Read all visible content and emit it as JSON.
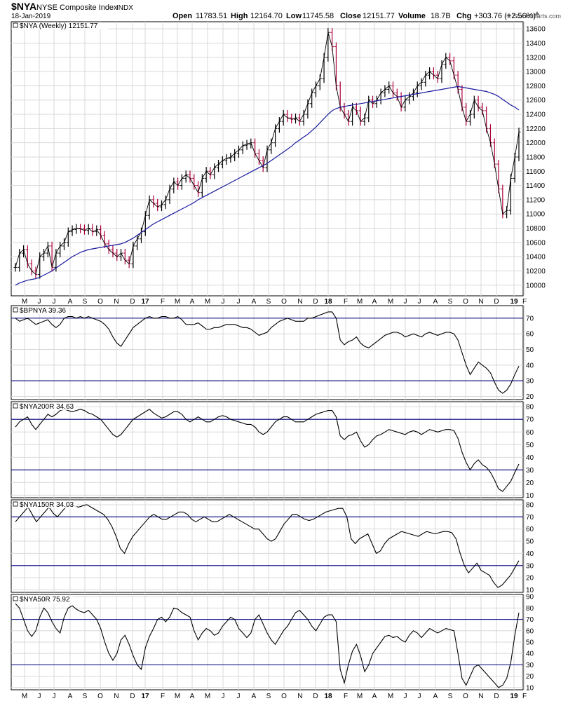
{
  "header": {
    "symbol": "$NYA",
    "name": "NYSE Composite Index",
    "exchange": "INDX",
    "date": "18-Jan-2019",
    "watermark": "© StockCharts.com",
    "quote": {
      "open_label": "Open",
      "open": "11783.51",
      "high_label": "High",
      "high": "12164.70",
      "low_label": "Low",
      "low": "11745.58",
      "close_label": "Close",
      "close": "12151.77",
      "volume_label": "Volume",
      "volume": "18.7B",
      "chg_label": "Chg",
      "chg": "+303.76 (+2.56%)"
    }
  },
  "colors": {
    "price": "#000000",
    "down_bar": "#b00040",
    "moving_average": "#1a1aa0",
    "grid": "#d8d8d8",
    "reference_line": "#000080"
  },
  "chart_data": [
    {
      "type": "line",
      "panel": "price",
      "label": "$NYA (Weekly) 12151.77",
      "x_tick_labels": [
        "M",
        "J",
        "J",
        "A",
        "S",
        "O",
        "N",
        "D",
        "17",
        "F",
        "M",
        "A",
        "M",
        "J",
        "J",
        "A",
        "S",
        "O",
        "N",
        "D",
        "18",
        "F",
        "M",
        "A",
        "M",
        "J",
        "J",
        "A",
        "S",
        "O",
        "N",
        "D",
        "19",
        "F"
      ],
      "y_ticks": [
        10000,
        10200,
        10400,
        10600,
        10800,
        11000,
        11200,
        11400,
        11600,
        11800,
        12000,
        12200,
        12400,
        12600,
        12800,
        13000,
        13200,
        13400,
        13600
      ],
      "ylim": [
        9850,
        13700
      ],
      "grid": true,
      "series": [
        {
          "name": "close",
          "values": [
            10250,
            10450,
            10500,
            10300,
            10200,
            10150,
            10400,
            10450,
            10550,
            10250,
            10450,
            10550,
            10600,
            10750,
            10780,
            10800,
            10790,
            10770,
            10800,
            10750,
            10780,
            10700,
            10580,
            10500,
            10450,
            10400,
            10450,
            10350,
            10300,
            10550,
            10650,
            10750,
            10980,
            11200,
            11150,
            11100,
            11130,
            11200,
            11350,
            11450,
            11400,
            11500,
            11550,
            11500,
            11400,
            11300,
            11500,
            11600,
            11550,
            11650,
            11700,
            11750,
            11780,
            11800,
            11850,
            11900,
            11960,
            11980,
            12000,
            11850,
            11750,
            11650,
            11900,
            12000,
            12200,
            12300,
            12400,
            12350,
            12330,
            12350,
            12300,
            12400,
            12550,
            12700,
            12800,
            12900,
            13200,
            13550,
            13350,
            12800,
            12500,
            12400,
            12300,
            12500,
            12450,
            12300,
            12350,
            12600,
            12550,
            12600,
            12700,
            12750,
            12800,
            12700,
            12650,
            12500,
            12600,
            12650,
            12700,
            12800,
            12850,
            12950,
            13000,
            12950,
            12900,
            13100,
            13200,
            13150,
            12950,
            12750,
            12500,
            12300,
            12400,
            12600,
            12500,
            12450,
            12200,
            12000,
            11700,
            11350,
            11000,
            11050,
            11500,
            11800,
            12151.77
          ]
        },
        {
          "name": "moving_average",
          "values": [
            10000,
            10030,
            10050,
            10070,
            10080,
            10090,
            10110,
            10140,
            10170,
            10200,
            10240,
            10280,
            10320,
            10360,
            10400,
            10430,
            10460,
            10480,
            10500,
            10510,
            10520,
            10530,
            10540,
            10550,
            10560,
            10570,
            10580,
            10600,
            10630,
            10660,
            10700,
            10740,
            10780,
            10820,
            10860,
            10890,
            10920,
            10950,
            10980,
            11010,
            11040,
            11070,
            11100,
            11130,
            11160,
            11200,
            11230,
            11260,
            11290,
            11320,
            11350,
            11380,
            11410,
            11440,
            11470,
            11500,
            11530,
            11560,
            11590,
            11620,
            11650,
            11680,
            11710,
            11750,
            11790,
            11830,
            11870,
            11910,
            11950,
            12000,
            12040,
            12080,
            12120,
            12170,
            12220,
            12280,
            12340,
            12400,
            12450,
            12480,
            12500,
            12510,
            12520,
            12530,
            12540,
            12550,
            12560,
            12570,
            12580,
            12590,
            12600,
            12610,
            12620,
            12630,
            12640,
            12650,
            12660,
            12670,
            12680,
            12690,
            12700,
            12710,
            12720,
            12730,
            12740,
            12750,
            12760,
            12770,
            12780,
            12790,
            12780,
            12770,
            12760,
            12750,
            12740,
            12730,
            12720,
            12700,
            12680,
            12650,
            12610,
            12570,
            12530,
            12500,
            12460
          ]
        }
      ]
    },
    {
      "type": "line",
      "panel": "bpnya",
      "label": "$BPNYA 39.36",
      "y_ticks": [
        20,
        30,
        40,
        50,
        60,
        70
      ],
      "reference_lines": [
        70,
        30
      ],
      "ylim": [
        18,
        78
      ],
      "grid": true,
      "series": [
        {
          "name": "$BPNYA",
          "values": [
            70,
            68,
            69,
            70,
            68,
            66,
            67,
            68,
            69,
            66,
            64,
            66,
            70,
            71,
            71,
            70,
            71,
            70,
            71,
            70,
            69,
            68,
            66,
            63,
            58,
            54,
            52,
            56,
            60,
            64,
            66,
            68,
            70,
            71,
            70,
            70,
            71,
            71,
            70,
            70,
            71,
            69,
            66,
            66,
            66,
            67,
            65,
            63,
            63,
            64,
            64,
            65,
            66,
            66,
            66,
            65,
            64,
            64,
            63,
            61,
            59,
            60,
            61,
            64,
            66,
            68,
            69,
            70,
            69,
            68,
            68,
            68,
            70,
            70,
            71,
            72,
            73,
            74,
            74,
            70,
            56,
            53,
            55,
            56,
            58,
            54,
            52,
            51,
            53,
            55,
            57,
            59,
            60,
            61,
            61,
            60,
            58,
            59,
            60,
            59,
            58,
            60,
            61,
            60,
            59,
            60,
            61,
            61,
            60,
            56,
            48,
            40,
            34,
            38,
            42,
            40,
            38,
            35,
            29,
            24,
            22,
            24,
            28,
            34,
            39.36
          ]
        }
      ]
    },
    {
      "type": "line",
      "panel": "nya200r",
      "label": "$NYA200R 34.63",
      "y_ticks": [
        10,
        20,
        30,
        40,
        50,
        60,
        70,
        80
      ],
      "reference_lines": [
        70,
        30
      ],
      "ylim": [
        8,
        84
      ],
      "grid": true,
      "series": [
        {
          "name": "$NYA200R",
          "values": [
            64,
            68,
            70,
            72,
            66,
            62,
            66,
            70,
            74,
            72,
            74,
            77,
            78,
            77,
            76,
            77,
            78,
            77,
            75,
            74,
            72,
            70,
            66,
            62,
            58,
            56,
            58,
            62,
            66,
            70,
            72,
            74,
            76,
            78,
            75,
            73,
            71,
            72,
            74,
            76,
            76,
            74,
            70,
            68,
            70,
            72,
            70,
            68,
            68,
            70,
            72,
            73,
            72,
            70,
            69,
            68,
            67,
            66,
            66,
            64,
            60,
            58,
            60,
            64,
            68,
            70,
            72,
            72,
            70,
            68,
            68,
            68,
            70,
            72,
            74,
            75,
            76,
            77,
            77,
            72,
            57,
            54,
            57,
            58,
            60,
            53,
            48,
            50,
            54,
            57,
            58,
            60,
            62,
            61,
            60,
            59,
            58,
            60,
            61,
            60,
            58,
            60,
            62,
            61,
            60,
            61,
            62,
            62,
            61,
            55,
            44,
            36,
            30,
            35,
            38,
            34,
            32,
            28,
            22,
            15,
            13,
            17,
            21,
            28,
            34.63
          ]
        }
      ]
    },
    {
      "type": "line",
      "panel": "nya150r",
      "label": "$NYA150R 34.03",
      "y_ticks": [
        10,
        20,
        30,
        40,
        50,
        60,
        70,
        80
      ],
      "reference_lines": [
        70,
        30
      ],
      "ylim": [
        8,
        84
      ],
      "grid": true,
      "series": [
        {
          "name": "$NYA150R",
          "values": [
            66,
            70,
            74,
            78,
            72,
            66,
            70,
            74,
            78,
            73,
            70,
            74,
            78,
            80,
            79,
            78,
            79,
            80,
            78,
            76,
            74,
            72,
            68,
            62,
            54,
            44,
            40,
            48,
            54,
            58,
            62,
            66,
            70,
            72,
            70,
            68,
            68,
            70,
            72,
            74,
            74,
            72,
            68,
            66,
            68,
            70,
            68,
            66,
            66,
            68,
            70,
            72,
            70,
            68,
            66,
            64,
            62,
            60,
            60,
            56,
            52,
            50,
            52,
            58,
            64,
            68,
            72,
            72,
            70,
            68,
            67,
            68,
            70,
            72,
            74,
            75,
            76,
            77,
            77,
            70,
            52,
            48,
            52,
            54,
            56,
            48,
            40,
            42,
            48,
            52,
            54,
            56,
            58,
            57,
            56,
            55,
            54,
            56,
            58,
            57,
            56,
            57,
            58,
            58,
            57,
            52,
            40,
            30,
            24,
            28,
            32,
            26,
            24,
            22,
            16,
            12,
            14,
            18,
            22,
            28,
            34.03
          ]
        }
      ]
    },
    {
      "type": "line",
      "panel": "nya50r",
      "label": "$NYA50R 75.92",
      "y_ticks": [
        10,
        20,
        30,
        40,
        50,
        60,
        70,
        80,
        90
      ],
      "reference_lines": [
        70,
        30
      ],
      "ylim": [
        8,
        92
      ],
      "grid": true,
      "series": [
        {
          "name": "$NYA50R",
          "values": [
            84,
            80,
            70,
            60,
            55,
            60,
            72,
            80,
            76,
            68,
            62,
            58,
            72,
            80,
            82,
            79,
            77,
            76,
            78,
            74,
            70,
            62,
            50,
            40,
            34,
            40,
            52,
            56,
            48,
            38,
            30,
            26,
            45,
            55,
            62,
            70,
            72,
            68,
            72,
            80,
            79,
            76,
            74,
            72,
            60,
            52,
            58,
            62,
            60,
            56,
            58,
            64,
            68,
            72,
            70,
            62,
            58,
            54,
            58,
            70,
            74,
            66,
            58,
            52,
            48,
            54,
            60,
            64,
            70,
            76,
            78,
            74,
            70,
            64,
            60,
            66,
            72,
            74,
            74,
            68,
            26,
            14,
            30,
            42,
            48,
            38,
            24,
            30,
            40,
            45,
            50,
            55,
            56,
            54,
            55,
            52,
            50,
            56,
            60,
            58,
            54,
            58,
            62,
            60,
            58,
            60,
            62,
            61,
            60,
            40,
            18,
            12,
            20,
            28,
            30,
            26,
            22,
            18,
            14,
            10,
            12,
            18,
            32,
            56,
            75.92
          ]
        }
      ]
    }
  ]
}
